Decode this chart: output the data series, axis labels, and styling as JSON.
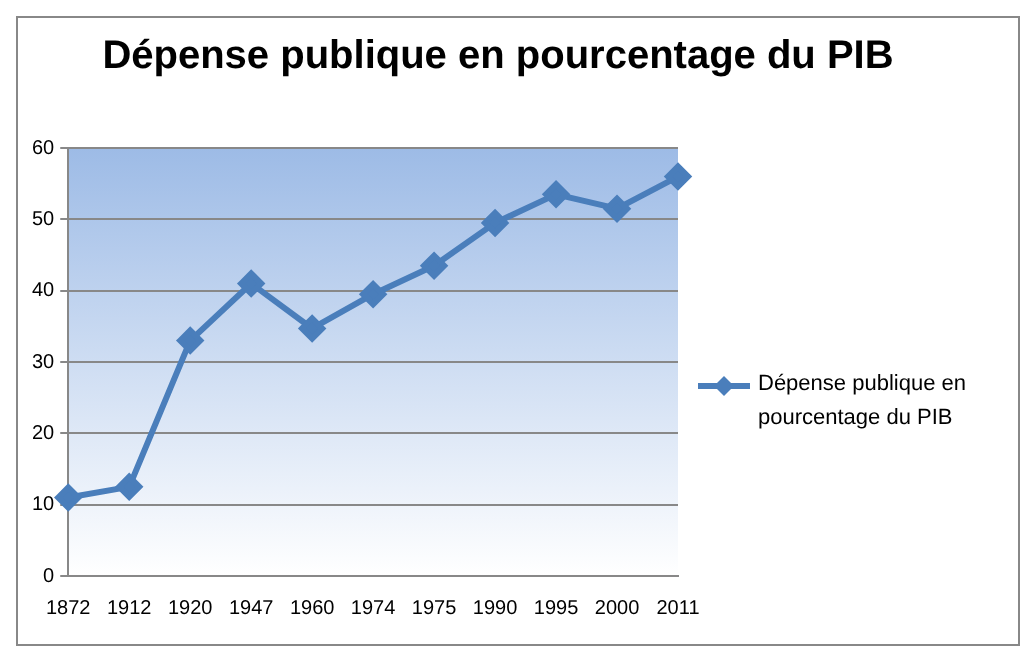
{
  "chart_data": {
    "type": "line",
    "title": "Dépense publique en pourcentage du PIB",
    "categories": [
      "1872",
      "1912",
      "1920",
      "1947",
      "1960",
      "1974",
      "1975",
      "1990",
      "1995",
      "2000",
      "2011"
    ],
    "series": [
      {
        "name": "Dépense publique en pourcentage du PIB",
        "color": "#4a7ebb",
        "values": [
          11,
          12.5,
          33,
          41,
          34.7,
          39.5,
          43.5,
          49.5,
          53.5,
          51.5,
          56
        ]
      }
    ],
    "ylim": [
      0,
      60
    ],
    "yticks": [
      0,
      10,
      20,
      30,
      40,
      50,
      60
    ],
    "grid": "y",
    "legend": "right",
    "marker": "diamond",
    "line_style": "solid"
  }
}
